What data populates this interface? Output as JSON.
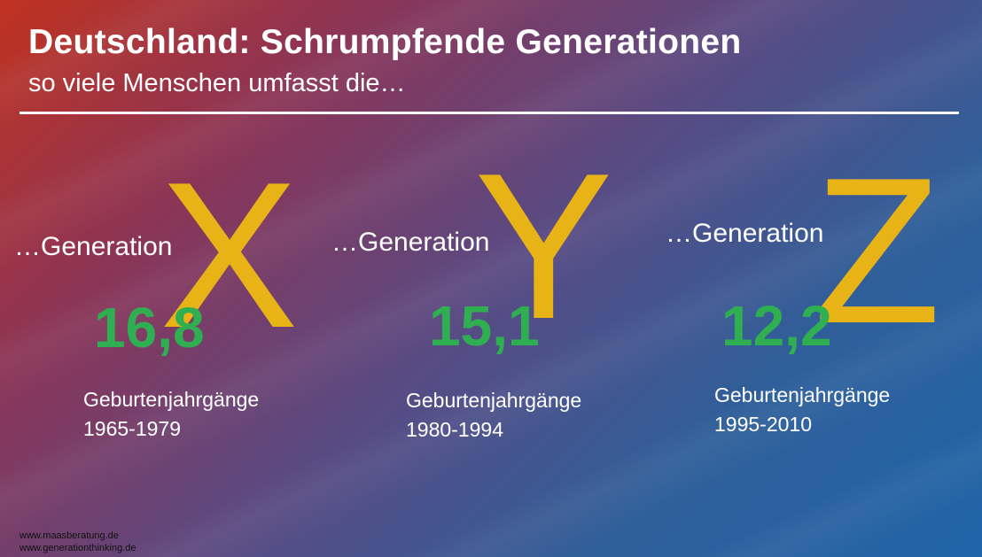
{
  "header": {
    "title": "Deutschland: Schrumpfende Generationen",
    "subtitle": "so viele Menschen umfasst die…"
  },
  "generations": [
    {
      "letter": "X",
      "label": "…Generation",
      "value": "16,8",
      "years_label": "Geburtenjahrgänge",
      "years": "1965-1979"
    },
    {
      "letter": "Y",
      "label": "…Generation",
      "value": "15,1",
      "years_label": "Geburtenjahrgänge",
      "years": "1980-1994"
    },
    {
      "letter": "Z",
      "label": "…Generation",
      "value": "12,2",
      "years_label": "Geburtenjahrgänge",
      "years": "1995-2010"
    }
  ],
  "footer": {
    "line1": "www.maasberatung.de",
    "line2": "www.generationthinking.de"
  },
  "colors": {
    "letter": "#e8b317",
    "value": "#2fae52",
    "text": "#ffffff"
  }
}
